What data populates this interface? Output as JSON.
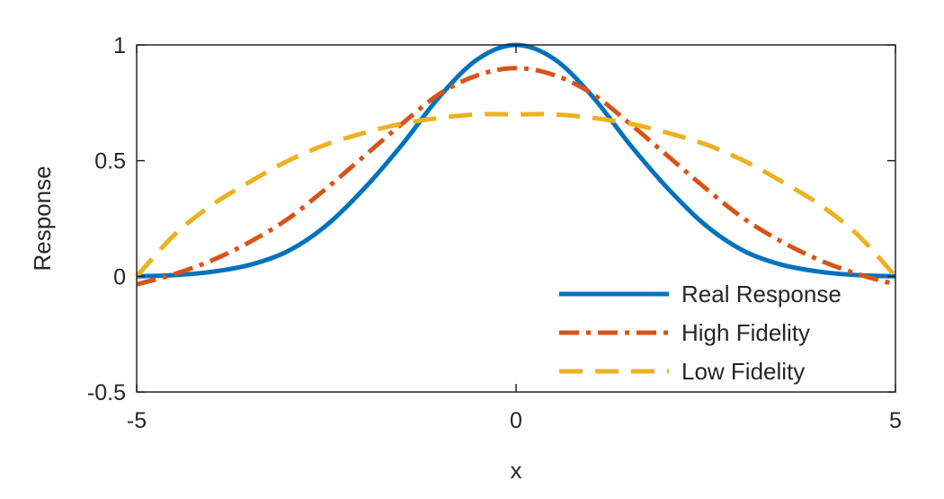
{
  "chart_data": {
    "type": "line",
    "xlabel": "x",
    "ylabel": "Response",
    "xlim": [
      -5,
      5
    ],
    "ylim": [
      -0.5,
      1
    ],
    "xticks": [
      -5,
      0,
      5
    ],
    "xtick_labels": [
      "-5",
      "0",
      "5"
    ],
    "yticks": [
      -0.5,
      0,
      0.5,
      1
    ],
    "ytick_labels": [
      "-0.5",
      "0",
      "0.5",
      "1"
    ],
    "grid": false,
    "legend_position": "bottom-right",
    "x": [
      -5,
      -4.5,
      -4,
      -3.5,
      -3,
      -2.5,
      -2,
      -1.5,
      -1,
      -0.5,
      0,
      0.5,
      1,
      1.5,
      2,
      2.5,
      3,
      3.5,
      4,
      4.5,
      5
    ],
    "series": [
      {
        "name": "Real Response",
        "color": "#0072BD",
        "style": "solid",
        "values": [
          0.0,
          0.005,
          0.02,
          0.05,
          0.11,
          0.22,
          0.38,
          0.57,
          0.78,
          0.94,
          1.0,
          0.94,
          0.78,
          0.57,
          0.38,
          0.22,
          0.11,
          0.05,
          0.02,
          0.005,
          0.0
        ]
      },
      {
        "name": "High Fidelity",
        "color": "#D95319",
        "style": "dashdot",
        "values": [
          -0.035,
          0.01,
          0.07,
          0.15,
          0.25,
          0.38,
          0.52,
          0.66,
          0.79,
          0.87,
          0.9,
          0.87,
          0.79,
          0.66,
          0.52,
          0.38,
          0.25,
          0.15,
          0.07,
          0.01,
          -0.035
        ]
      },
      {
        "name": "Low Fidelity",
        "color": "#EDB120",
        "style": "dashed",
        "values": [
          0.0,
          0.18,
          0.31,
          0.41,
          0.5,
          0.57,
          0.62,
          0.66,
          0.685,
          0.7,
          0.7,
          0.7,
          0.685,
          0.66,
          0.62,
          0.57,
          0.5,
          0.41,
          0.31,
          0.18,
          0.0
        ]
      }
    ]
  }
}
